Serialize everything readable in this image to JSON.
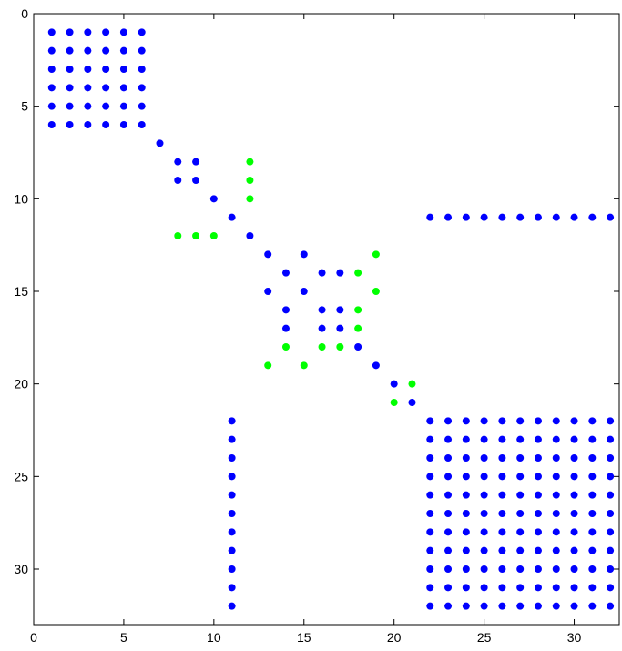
{
  "chart_data": {
    "type": "scatter",
    "title": "",
    "xlabel": "",
    "ylabel": "",
    "xlim": [
      0,
      32.5
    ],
    "ylim": [
      0,
      33
    ],
    "y_inverted": true,
    "x_ticks": [
      0,
      5,
      10,
      15,
      20,
      25,
      30
    ],
    "y_ticks": [
      0,
      5,
      10,
      15,
      20,
      25,
      30
    ],
    "grid": false,
    "colors": {
      "primary": "#0000ff",
      "secondary": "#00ff00"
    },
    "series": [
      {
        "color": "#0000ff",
        "points": [
          [
            1,
            1
          ],
          [
            2,
            1
          ],
          [
            3,
            1
          ],
          [
            4,
            1
          ],
          [
            5,
            1
          ],
          [
            6,
            1
          ],
          [
            1,
            2
          ],
          [
            2,
            2
          ],
          [
            3,
            2
          ],
          [
            4,
            2
          ],
          [
            5,
            2
          ],
          [
            6,
            2
          ],
          [
            1,
            3
          ],
          [
            2,
            3
          ],
          [
            3,
            3
          ],
          [
            4,
            3
          ],
          [
            5,
            3
          ],
          [
            6,
            3
          ],
          [
            1,
            4
          ],
          [
            2,
            4
          ],
          [
            3,
            4
          ],
          [
            4,
            4
          ],
          [
            5,
            4
          ],
          [
            6,
            4
          ],
          [
            1,
            5
          ],
          [
            2,
            5
          ],
          [
            3,
            5
          ],
          [
            4,
            5
          ],
          [
            5,
            5
          ],
          [
            6,
            5
          ],
          [
            1,
            6
          ],
          [
            2,
            6
          ],
          [
            3,
            6
          ],
          [
            4,
            6
          ],
          [
            5,
            6
          ],
          [
            6,
            6
          ],
          [
            7,
            7
          ],
          [
            8,
            8
          ],
          [
            9,
            8
          ],
          [
            8,
            9
          ],
          [
            9,
            9
          ],
          [
            10,
            10
          ],
          [
            11,
            11
          ],
          [
            22,
            11
          ],
          [
            23,
            11
          ],
          [
            24,
            11
          ],
          [
            25,
            11
          ],
          [
            26,
            11
          ],
          [
            27,
            11
          ],
          [
            28,
            11
          ],
          [
            29,
            11
          ],
          [
            30,
            11
          ],
          [
            31,
            11
          ],
          [
            32,
            11
          ],
          [
            12,
            12
          ],
          [
            13,
            13
          ],
          [
            15,
            13
          ],
          [
            14,
            14
          ],
          [
            16,
            14
          ],
          [
            17,
            14
          ],
          [
            13,
            15
          ],
          [
            15,
            15
          ],
          [
            14,
            16
          ],
          [
            16,
            16
          ],
          [
            17,
            16
          ],
          [
            14,
            17
          ],
          [
            16,
            17
          ],
          [
            17,
            17
          ],
          [
            18,
            18
          ],
          [
            19,
            19
          ],
          [
            20,
            20
          ],
          [
            21,
            21
          ],
          [
            11,
            22
          ],
          [
            11,
            23
          ],
          [
            11,
            24
          ],
          [
            11,
            25
          ],
          [
            11,
            26
          ],
          [
            11,
            27
          ],
          [
            11,
            28
          ],
          [
            11,
            29
          ],
          [
            11,
            30
          ],
          [
            11,
            31
          ],
          [
            11,
            32
          ],
          [
            22,
            22
          ],
          [
            23,
            22
          ],
          [
            24,
            22
          ],
          [
            25,
            22
          ],
          [
            26,
            22
          ],
          [
            27,
            22
          ],
          [
            28,
            22
          ],
          [
            29,
            22
          ],
          [
            30,
            22
          ],
          [
            31,
            22
          ],
          [
            32,
            22
          ],
          [
            22,
            23
          ],
          [
            23,
            23
          ],
          [
            24,
            23
          ],
          [
            25,
            23
          ],
          [
            26,
            23
          ],
          [
            27,
            23
          ],
          [
            28,
            23
          ],
          [
            29,
            23
          ],
          [
            30,
            23
          ],
          [
            31,
            23
          ],
          [
            32,
            23
          ],
          [
            22,
            24
          ],
          [
            23,
            24
          ],
          [
            24,
            24
          ],
          [
            25,
            24
          ],
          [
            26,
            24
          ],
          [
            27,
            24
          ],
          [
            28,
            24
          ],
          [
            29,
            24
          ],
          [
            30,
            24
          ],
          [
            31,
            24
          ],
          [
            32,
            24
          ],
          [
            22,
            25
          ],
          [
            23,
            25
          ],
          [
            24,
            25
          ],
          [
            25,
            25
          ],
          [
            26,
            25
          ],
          [
            27,
            25
          ],
          [
            28,
            25
          ],
          [
            29,
            25
          ],
          [
            30,
            25
          ],
          [
            31,
            25
          ],
          [
            32,
            25
          ],
          [
            22,
            26
          ],
          [
            23,
            26
          ],
          [
            24,
            26
          ],
          [
            25,
            26
          ],
          [
            26,
            26
          ],
          [
            27,
            26
          ],
          [
            28,
            26
          ],
          [
            29,
            26
          ],
          [
            30,
            26
          ],
          [
            31,
            26
          ],
          [
            32,
            26
          ],
          [
            22,
            27
          ],
          [
            23,
            27
          ],
          [
            24,
            27
          ],
          [
            25,
            27
          ],
          [
            26,
            27
          ],
          [
            27,
            27
          ],
          [
            28,
            27
          ],
          [
            29,
            27
          ],
          [
            30,
            27
          ],
          [
            31,
            27
          ],
          [
            32,
            27
          ],
          [
            22,
            28
          ],
          [
            23,
            28
          ],
          [
            24,
            28
          ],
          [
            25,
            28
          ],
          [
            26,
            28
          ],
          [
            27,
            28
          ],
          [
            28,
            28
          ],
          [
            29,
            28
          ],
          [
            30,
            28
          ],
          [
            31,
            28
          ],
          [
            32,
            28
          ],
          [
            22,
            29
          ],
          [
            23,
            29
          ],
          [
            24,
            29
          ],
          [
            25,
            29
          ],
          [
            26,
            29
          ],
          [
            27,
            29
          ],
          [
            28,
            29
          ],
          [
            29,
            29
          ],
          [
            30,
            29
          ],
          [
            31,
            29
          ],
          [
            32,
            29
          ],
          [
            22,
            30
          ],
          [
            23,
            30
          ],
          [
            24,
            30
          ],
          [
            25,
            30
          ],
          [
            26,
            30
          ],
          [
            27,
            30
          ],
          [
            28,
            30
          ],
          [
            29,
            30
          ],
          [
            30,
            30
          ],
          [
            31,
            30
          ],
          [
            32,
            30
          ],
          [
            22,
            31
          ],
          [
            23,
            31
          ],
          [
            24,
            31
          ],
          [
            25,
            31
          ],
          [
            26,
            31
          ],
          [
            27,
            31
          ],
          [
            28,
            31
          ],
          [
            29,
            31
          ],
          [
            30,
            31
          ],
          [
            31,
            31
          ],
          [
            32,
            31
          ],
          [
            22,
            32
          ],
          [
            23,
            32
          ],
          [
            24,
            32
          ],
          [
            25,
            32
          ],
          [
            26,
            32
          ],
          [
            27,
            32
          ],
          [
            28,
            32
          ],
          [
            29,
            32
          ],
          [
            30,
            32
          ],
          [
            31,
            32
          ],
          [
            32,
            32
          ]
        ]
      },
      {
        "color": "#00ff00",
        "points": [
          [
            12,
            8
          ],
          [
            12,
            9
          ],
          [
            12,
            10
          ],
          [
            8,
            12
          ],
          [
            9,
            12
          ],
          [
            10,
            12
          ],
          [
            19,
            13
          ],
          [
            18,
            14
          ],
          [
            19,
            15
          ],
          [
            18,
            16
          ],
          [
            18,
            17
          ],
          [
            14,
            18
          ],
          [
            16,
            18
          ],
          [
            17,
            18
          ],
          [
            13,
            19
          ],
          [
            15,
            19
          ],
          [
            21,
            20
          ],
          [
            20,
            21
          ]
        ]
      }
    ]
  }
}
